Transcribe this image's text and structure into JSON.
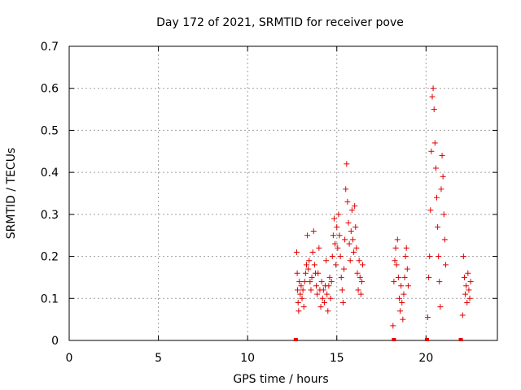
{
  "chart_data": {
    "type": "scatter",
    "title": "Day 172 of 2021, SRMTID for receiver pove",
    "xlabel": "GPS time / hours",
    "ylabel": "SRMTID / TECUs",
    "xlim": [
      0,
      24
    ],
    "ylim": [
      0,
      0.7
    ],
    "xticks": [
      0,
      5,
      10,
      15,
      20
    ],
    "yticks": [
      0,
      0.1,
      0.2,
      0.3,
      0.4,
      0.5,
      0.6,
      0.7
    ],
    "xtick_labels": [
      "0",
      "5",
      "10",
      "15",
      "20"
    ],
    "ytick_labels": [
      "0",
      "0.1",
      "0.2",
      "0.3",
      "0.4",
      "0.5",
      "0.6",
      "0.7"
    ],
    "grid": true,
    "marker": "plus",
    "color": "#e00000",
    "series": [
      {
        "name": "",
        "points": [
          [
            12.75,
            0.21
          ],
          [
            12.78,
            0.16
          ],
          [
            12.8,
            0.12
          ],
          [
            12.83,
            0.09
          ],
          [
            12.86,
            0.07
          ],
          [
            12.9,
            0.14
          ],
          [
            12.95,
            0.11
          ],
          [
            13.0,
            0.13
          ],
          [
            13.05,
            0.1
          ],
          [
            13.1,
            0.12
          ],
          [
            13.15,
            0.08
          ],
          [
            13.2,
            0.14
          ],
          [
            13.25,
            0.16
          ],
          [
            13.3,
            0.18
          ],
          [
            13.35,
            0.25
          ],
          [
            13.4,
            0.17
          ],
          [
            13.45,
            0.19
          ],
          [
            13.5,
            0.14
          ],
          [
            13.55,
            0.12
          ],
          [
            13.6,
            0.15
          ],
          [
            13.65,
            0.21
          ],
          [
            13.7,
            0.26
          ],
          [
            13.75,
            0.18
          ],
          [
            13.8,
            0.16
          ],
          [
            13.85,
            0.13
          ],
          [
            13.9,
            0.11
          ],
          [
            13.95,
            0.16
          ],
          [
            14.0,
            0.22
          ],
          [
            14.05,
            0.12
          ],
          [
            14.1,
            0.08
          ],
          [
            14.15,
            0.14
          ],
          [
            14.2,
            0.1
          ],
          [
            14.25,
            0.12
          ],
          [
            14.3,
            0.09
          ],
          [
            14.35,
            0.13
          ],
          [
            14.4,
            0.19
          ],
          [
            14.45,
            0.11
          ],
          [
            14.5,
            0.07
          ],
          [
            14.55,
            0.13
          ],
          [
            14.6,
            0.15
          ],
          [
            14.65,
            0.1
          ],
          [
            14.7,
            0.14
          ],
          [
            14.75,
            0.2
          ],
          [
            14.8,
            0.25
          ],
          [
            14.85,
            0.29
          ],
          [
            14.9,
            0.23
          ],
          [
            14.95,
            0.18
          ],
          [
            15.0,
            0.27
          ],
          [
            15.05,
            0.22
          ],
          [
            15.1,
            0.3
          ],
          [
            15.15,
            0.25
          ],
          [
            15.2,
            0.2
          ],
          [
            15.25,
            0.15
          ],
          [
            15.3,
            0.12
          ],
          [
            15.35,
            0.09
          ],
          [
            15.4,
            0.17
          ],
          [
            15.45,
            0.24
          ],
          [
            15.5,
            0.36
          ],
          [
            15.55,
            0.42
          ],
          [
            15.6,
            0.33
          ],
          [
            15.65,
            0.28
          ],
          [
            15.7,
            0.23
          ],
          [
            15.75,
            0.19
          ],
          [
            15.8,
            0.26
          ],
          [
            15.85,
            0.31
          ],
          [
            15.9,
            0.24
          ],
          [
            15.95,
            0.21
          ],
          [
            16.0,
            0.32
          ],
          [
            16.05,
            0.27
          ],
          [
            16.1,
            0.22
          ],
          [
            16.15,
            0.16
          ],
          [
            16.2,
            0.12
          ],
          [
            16.25,
            0.19
          ],
          [
            16.3,
            0.15
          ],
          [
            16.35,
            0.11
          ],
          [
            16.4,
            0.14
          ],
          [
            16.45,
            0.18
          ],
          [
            18.15,
            0.035
          ],
          [
            18.2,
            0.14
          ],
          [
            18.25,
            0.19
          ],
          [
            18.3,
            0.22
          ],
          [
            18.35,
            0.18
          ],
          [
            18.4,
            0.24
          ],
          [
            18.45,
            0.15
          ],
          [
            18.5,
            0.1
          ],
          [
            18.55,
            0.07
          ],
          [
            18.6,
            0.13
          ],
          [
            18.65,
            0.09
          ],
          [
            18.7,
            0.05
          ],
          [
            18.75,
            0.11
          ],
          [
            18.8,
            0.15
          ],
          [
            18.85,
            0.2
          ],
          [
            18.9,
            0.22
          ],
          [
            18.95,
            0.17
          ],
          [
            19.0,
            0.13
          ],
          [
            20.1,
            0.055
          ],
          [
            20.15,
            0.15
          ],
          [
            20.2,
            0.2
          ],
          [
            20.25,
            0.31
          ],
          [
            20.3,
            0.45
          ],
          [
            20.35,
            0.58
          ],
          [
            20.4,
            0.6
          ],
          [
            20.45,
            0.55
          ],
          [
            20.5,
            0.47
          ],
          [
            20.55,
            0.41
          ],
          [
            20.6,
            0.34
          ],
          [
            20.65,
            0.27
          ],
          [
            20.7,
            0.2
          ],
          [
            20.75,
            0.14
          ],
          [
            20.8,
            0.08
          ],
          [
            20.85,
            0.36
          ],
          [
            20.9,
            0.44
          ],
          [
            20.95,
            0.39
          ],
          [
            21.0,
            0.3
          ],
          [
            21.05,
            0.24
          ],
          [
            21.1,
            0.18
          ],
          [
            22.05,
            0.06
          ],
          [
            22.1,
            0.2
          ],
          [
            22.15,
            0.15
          ],
          [
            22.2,
            0.11
          ],
          [
            22.25,
            0.13
          ],
          [
            22.3,
            0.09
          ],
          [
            22.35,
            0.16
          ],
          [
            22.4,
            0.12
          ],
          [
            22.45,
            0.1
          ],
          [
            22.5,
            0.14
          ]
        ]
      }
    ],
    "zero_markers": [
      12.7,
      18.2,
      20.05,
      21.95
    ]
  }
}
